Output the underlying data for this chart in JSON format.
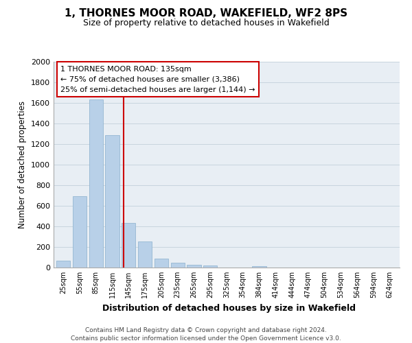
{
  "title": "1, THORNES MOOR ROAD, WAKEFIELD, WF2 8PS",
  "subtitle": "Size of property relative to detached houses in Wakefield",
  "xlabel": "Distribution of detached houses by size in Wakefield",
  "ylabel": "Number of detached properties",
  "bar_color": "#b8d0e8",
  "bar_edge_color": "#8ab0cc",
  "categories": [
    "25sqm",
    "55sqm",
    "85sqm",
    "115sqm",
    "145sqm",
    "175sqm",
    "205sqm",
    "235sqm",
    "265sqm",
    "295sqm",
    "325sqm",
    "354sqm",
    "384sqm",
    "414sqm",
    "444sqm",
    "474sqm",
    "504sqm",
    "534sqm",
    "564sqm",
    "594sqm",
    "624sqm"
  ],
  "values": [
    65,
    695,
    1635,
    1285,
    435,
    255,
    90,
    50,
    28,
    20,
    0,
    0,
    15,
    0,
    0,
    0,
    0,
    0,
    0,
    0,
    0
  ],
  "ylim": [
    0,
    2000
  ],
  "yticks": [
    0,
    200,
    400,
    600,
    800,
    1000,
    1200,
    1400,
    1600,
    1800,
    2000
  ],
  "vline_color": "#cc0000",
  "vline_pos": 3.67,
  "annotation_title": "1 THORNES MOOR ROAD: 135sqm",
  "annotation_line1": "← 75% of detached houses are smaller (3,386)",
  "annotation_line2": "25% of semi-detached houses are larger (1,144) →",
  "footer_line1": "Contains HM Land Registry data © Crown copyright and database right 2024.",
  "footer_line2": "Contains public sector information licensed under the Open Government Licence v3.0.",
  "plot_bg_color": "#e8eef4",
  "grid_color": "#c8d4de"
}
